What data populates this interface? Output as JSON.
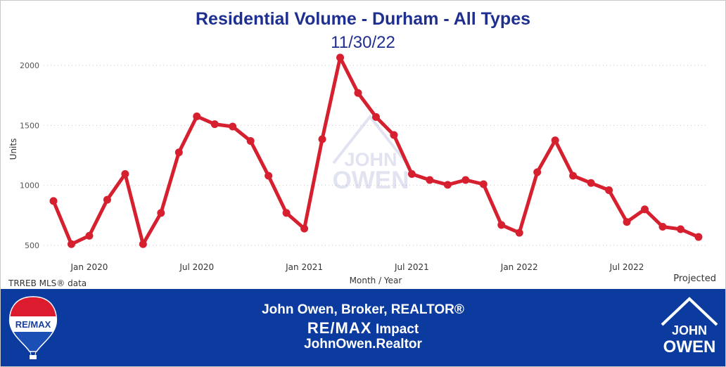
{
  "header": {
    "title": "Residential Volume - Durham - All Types",
    "subtitle": "11/30/22"
  },
  "chart_data": {
    "type": "line",
    "xlabel": "Month / Year",
    "ylabel": "Units",
    "y_ticks": [
      500,
      1000,
      1500,
      2000
    ],
    "x_tick_labels": [
      "Jan 2020",
      "Jul 2020",
      "Jan 2021",
      "Jul 2021",
      "Jan 2022",
      "Jul 2022"
    ],
    "grid": true,
    "series_color": "#d7202f",
    "series": [
      {
        "values": [
          870,
          510,
          580,
          880,
          1095,
          510,
          770,
          1275,
          1575,
          1510,
          1490,
          1370,
          1080,
          770,
          640,
          1385,
          2065,
          1770,
          1570,
          1420,
          1095,
          1045,
          1005,
          1045,
          1010,
          670,
          605,
          1110,
          1375,
          1080,
          1020,
          960,
          695,
          800,
          655,
          635,
          570
        ],
        "x": [
          "Nov 2019",
          "Dec 2019",
          "Jan 2020",
          "Feb 2020",
          "Mar 2020",
          "Apr 2020",
          "May 2020",
          "Jun 2020",
          "Jul 2020",
          "Aug 2020",
          "Sep 2020",
          "Oct 2020",
          "Nov 2020",
          "Dec 2020",
          "Jan 2021",
          "Feb 2021",
          "Mar 2021",
          "Apr 2021",
          "May 2021",
          "Jun 2021",
          "Jul 2021",
          "Aug 2021",
          "Sep 2021",
          "Oct 2021",
          "Nov 2021",
          "Dec 2021",
          "Jan 2022",
          "Feb 2022",
          "Mar 2022",
          "Apr 2022",
          "May 2022",
          "Jun 2022",
          "Jul 2022",
          "Aug 2022",
          "Sep 2022",
          "Oct 2022",
          "Nov 2022"
        ]
      }
    ],
    "annotations": [
      "TRREB MLS® data",
      "Projected"
    ]
  },
  "watermark": {
    "line1": "JOHN",
    "line2": "OWEN"
  },
  "footer": {
    "line1": "John Owen, Broker, REALTOR®",
    "brand": "RE/MAX",
    "brand_suffix": "Impact",
    "website": "JohnOwen.Realtor",
    "balloon_text": "RE/MAX",
    "logo_line1": "JOHN",
    "logo_line2": "OWEN",
    "background_color": "#0b3b9e"
  }
}
